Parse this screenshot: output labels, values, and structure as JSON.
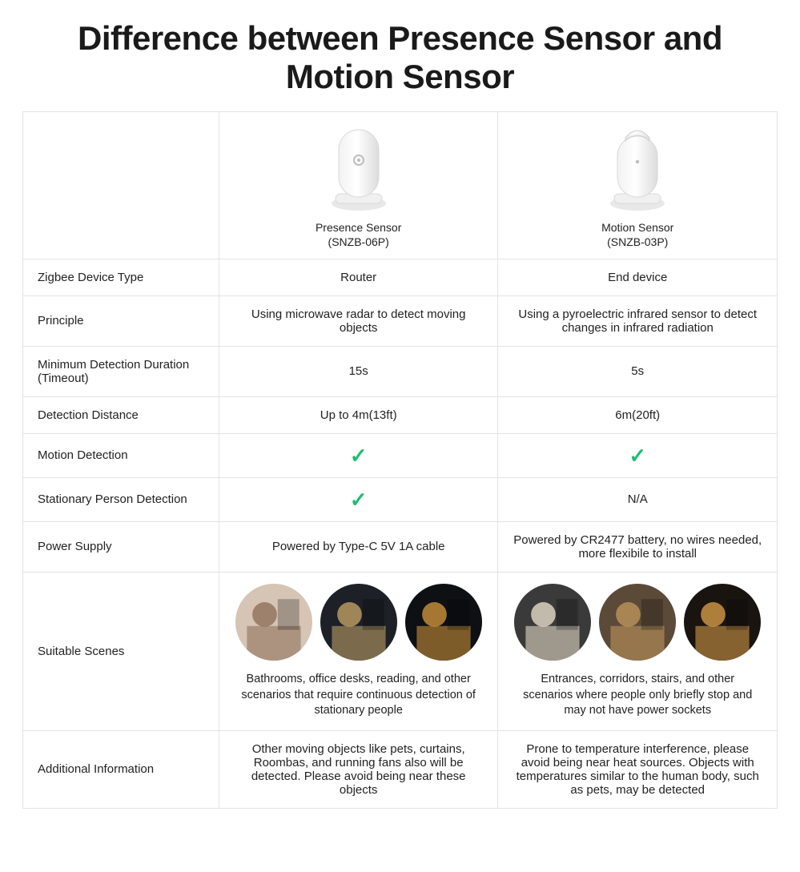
{
  "title": "Difference between Presence Sensor and Motion Sensor",
  "products": {
    "presence": {
      "name": "Presence Sensor",
      "model": "(SNZB-06P)"
    },
    "motion": {
      "name": "Motion Sensor",
      "model": "(SNZB-03P)"
    }
  },
  "rows": {
    "zigbee": {
      "label": "Zigbee Device Type",
      "presence": "Router",
      "motion": "End device"
    },
    "principle": {
      "label": "Principle",
      "presence": "Using microwave radar to detect moving objects",
      "motion": "Using a pyroelectric infrared sensor to detect changes in infrared radiation"
    },
    "min_detect": {
      "label": "Minimum Detection Duration (Timeout)",
      "presence": "15s",
      "motion": "5s"
    },
    "distance": {
      "label": "Detection Distance",
      "presence": "Up to 4m(13ft)",
      "motion": "6m(20ft)"
    },
    "motion_detect": {
      "label": "Motion Detection",
      "presence_check": true,
      "motion_check": true
    },
    "stationary": {
      "label": "Stationary Person Detection",
      "presence_check": true,
      "motion": "N/A"
    },
    "power": {
      "label": "Power Supply",
      "presence": "Powered by Type-C 5V 1A cable",
      "motion": "Powered by CR2477 battery, no wires needed, more flexibile to install"
    },
    "scenes": {
      "label": "Suitable Scenes",
      "presence_desc": "Bathrooms, office desks, reading, and other scenarios that require continuous detection of stationary people",
      "motion_desc": "Entrances, corridors, stairs, and other scenarios where people only briefly stop and may not have power sockets"
    },
    "additional": {
      "label": "Additional Information",
      "presence": "Other moving objects like pets, curtains, Roombas, and running fans also will be detected. Please avoid being near these objects",
      "motion": "Prone to temperature interference, please avoid being near heat sources. Objects with temperatures similar to the human body, such as pets, may be detected"
    }
  },
  "style": {
    "border_color": "#e3e3e3",
    "check_color": "#1bbf6e",
    "title_fontsize": 42,
    "body_fontsize": 15,
    "background": "#ffffff",
    "text_color": "#1a1a1a",
    "column_widths": [
      "26%",
      "37%",
      "37%"
    ]
  },
  "scene_thumbs": {
    "presence": [
      {
        "name": "bathroom-scene",
        "bg": "#d6c4b4",
        "accent": "#8a6b55"
      },
      {
        "name": "desk-scene",
        "bg": "#1d2027",
        "accent": "#c9a86a"
      },
      {
        "name": "reading-scene",
        "bg": "#0e1014",
        "accent": "#d99a3d"
      }
    ],
    "motion": [
      {
        "name": "entrance-scene",
        "bg": "#3a3a3a",
        "accent": "#f0e6d2"
      },
      {
        "name": "corridor-scene",
        "bg": "#5c4a38",
        "accent": "#c49a5e"
      },
      {
        "name": "stairs-scene",
        "bg": "#1a1410",
        "accent": "#e0a24a"
      }
    ]
  }
}
